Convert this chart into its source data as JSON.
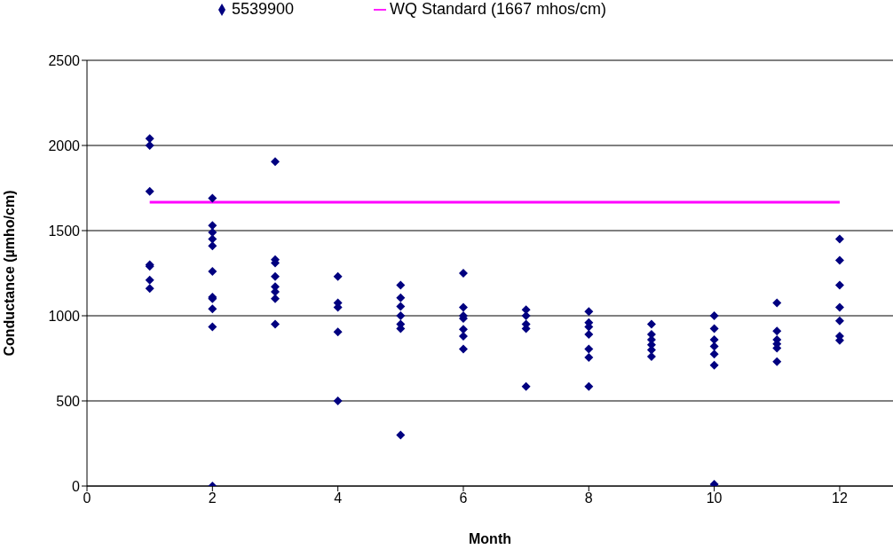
{
  "chart_data": {
    "type": "scatter",
    "xlabel": "Month",
    "ylabel": "Conductance (µmho/cm)",
    "xlim": [
      0,
      12.85
    ],
    "xticks": [
      0,
      2,
      4,
      6,
      8,
      10,
      12
    ],
    "ylim": [
      0,
      2500
    ],
    "yticks": [
      0,
      500,
      1000,
      1500,
      2000,
      2500
    ],
    "grid": "y",
    "legend": "top",
    "marker": "diamond",
    "series": [
      {
        "name": "5539900",
        "color": "#000080",
        "x": [
          1,
          1,
          1,
          1,
          1,
          1,
          1,
          2,
          2,
          2,
          2,
          2,
          2,
          2,
          2,
          2,
          2,
          2,
          3,
          3,
          3,
          3,
          3,
          3,
          3,
          3,
          4,
          4,
          4,
          4,
          4,
          5,
          5,
          5,
          5,
          5,
          5,
          5,
          6,
          6,
          6,
          6,
          6,
          6,
          6,
          7,
          7,
          7,
          7,
          7,
          8,
          8,
          8,
          8,
          8,
          8,
          8,
          9,
          9,
          9,
          9,
          9,
          9,
          10,
          10,
          10,
          10,
          10,
          10,
          10,
          11,
          11,
          11,
          11,
          11,
          11,
          12,
          12,
          12,
          12,
          12,
          12,
          12
        ],
        "values": [
          2040,
          2000,
          1730,
          1300,
          1290,
          1210,
          1160,
          1690,
          1530,
          1490,
          1450,
          1410,
          1260,
          1110,
          1100,
          1040,
          935,
          0,
          1905,
          1330,
          1310,
          1230,
          1170,
          1140,
          1100,
          950,
          1230,
          1075,
          1050,
          905,
          500,
          1180,
          1105,
          1055,
          1000,
          950,
          925,
          300,
          1250,
          1050,
          1000,
          985,
          920,
          880,
          805,
          1035,
          1000,
          950,
          925,
          585,
          1025,
          960,
          935,
          890,
          805,
          755,
          585,
          950,
          890,
          860,
          830,
          800,
          760,
          1000,
          925,
          860,
          820,
          775,
          710,
          10,
          1075,
          910,
          860,
          835,
          810,
          730,
          1450,
          1325,
          1180,
          1050,
          970,
          880,
          855
        ]
      },
      {
        "name": "WQ Standard (1667 mhos/cm)",
        "color": "#ff00ff",
        "type": "line",
        "line_style": "solid",
        "marker": "none",
        "x": [
          1,
          12
        ],
        "values": [
          1667,
          1667
        ]
      }
    ]
  }
}
